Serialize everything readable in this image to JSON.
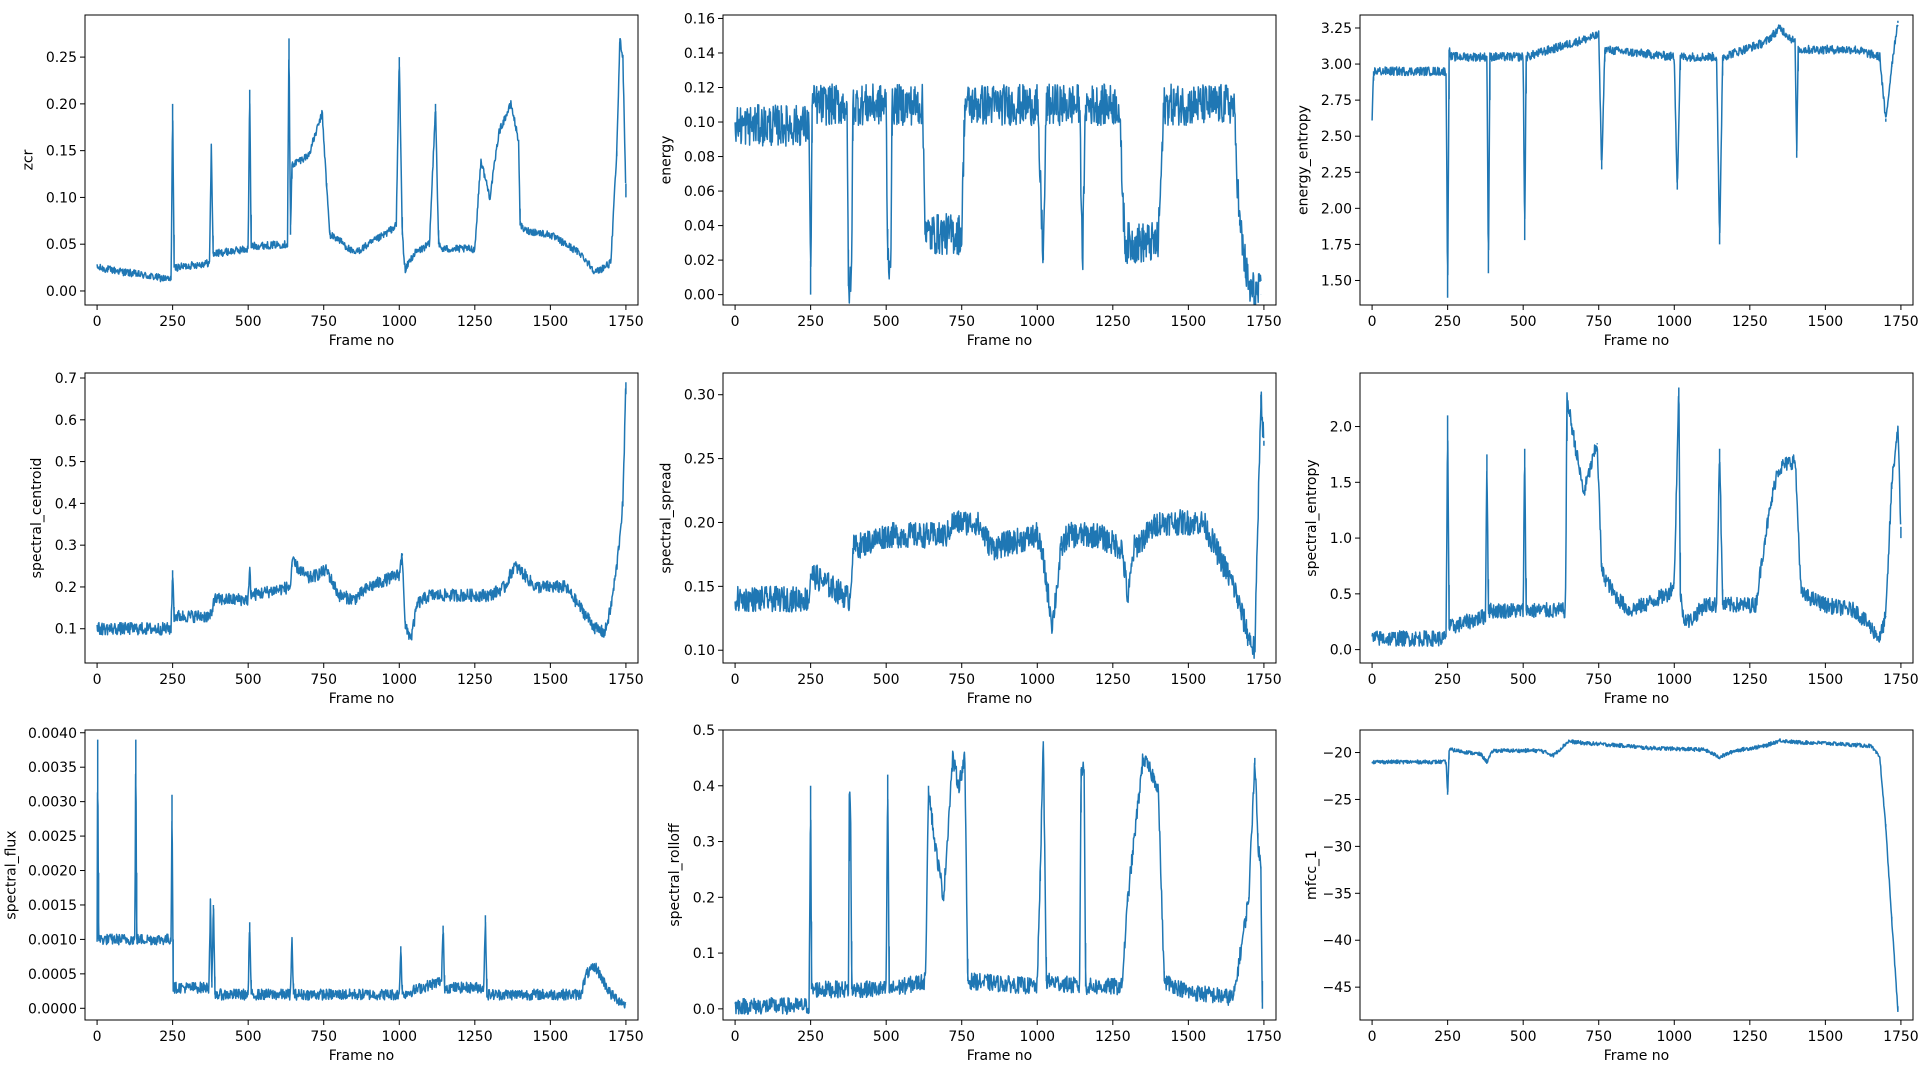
{
  "figure": {
    "background": "#ffffff",
    "line_color": "#1f77b4",
    "axes_color": "#000000"
  },
  "chart_data": [
    {
      "type": "line",
      "xlabel": "Frame no",
      "ylabel": "zcr",
      "xlim": [
        -40,
        1790
      ],
      "ylim": [
        -0.015,
        0.295
      ],
      "xticks": [
        0,
        250,
        500,
        750,
        1000,
        1250,
        1500,
        1750
      ],
      "xtick_labels": [
        "0",
        "250",
        "500",
        "750",
        "1000",
        "1250",
        "1500",
        "1750"
      ],
      "yticks": [
        0,
        0.05,
        0.1,
        0.15,
        0.2,
        0.25
      ],
      "ytick_labels": [
        "0.00",
        "0.05",
        "0.10",
        "0.15",
        "0.20",
        "0.25"
      ],
      "x": [
        0,
        245,
        250,
        255,
        260,
        372,
        378,
        384,
        390,
        500,
        505,
        510,
        515,
        630,
        635,
        640,
        645,
        700,
        745,
        760,
        770,
        800,
        850,
        900,
        950,
        990,
        1000,
        1010,
        1020,
        1030,
        1050,
        1100,
        1120,
        1130,
        1140,
        1150,
        1200,
        1250,
        1270,
        1300,
        1330,
        1370,
        1395,
        1400,
        1415,
        1500,
        1600,
        1650,
        1700,
        1720,
        1730,
        1740,
        1750
      ],
      "values": [
        0.025,
        0.012,
        0.2,
        0.025,
        0.025,
        0.03,
        0.155,
        0.04,
        0.04,
        0.045,
        0.215,
        0.048,
        0.048,
        0.05,
        0.27,
        0.06,
        0.135,
        0.145,
        0.19,
        0.11,
        0.06,
        0.055,
        0.04,
        0.05,
        0.06,
        0.07,
        0.25,
        0.06,
        0.02,
        0.03,
        0.04,
        0.05,
        0.2,
        0.05,
        0.045,
        0.045,
        0.045,
        0.045,
        0.14,
        0.1,
        0.17,
        0.2,
        0.16,
        0.07,
        0.065,
        0.06,
        0.04,
        0.02,
        0.03,
        0.15,
        0.27,
        0.25,
        0.1
      ],
      "noise": 0.004
    },
    {
      "type": "line",
      "xlabel": "Frame no",
      "ylabel": "energy",
      "xlim": [
        -40,
        1790
      ],
      "ylim": [
        -0.006,
        0.162
      ],
      "xticks": [
        0,
        250,
        500,
        750,
        1000,
        1250,
        1500,
        1750
      ],
      "xtick_labels": [
        "0",
        "250",
        "500",
        "750",
        "1000",
        "1250",
        "1500",
        "1750"
      ],
      "yticks": [
        0,
        0.02,
        0.04,
        0.06,
        0.08,
        0.1,
        0.12,
        0.14,
        0.16
      ],
      "ytick_labels": [
        "0.00",
        "0.02",
        "0.04",
        "0.06",
        "0.08",
        "0.10",
        "0.12",
        "0.14",
        "0.16"
      ],
      "x": [
        0,
        245,
        250,
        255,
        260,
        370,
        375,
        385,
        390,
        500,
        505,
        515,
        520,
        620,
        630,
        700,
        750,
        760,
        900,
        1000,
        1020,
        1030,
        1140,
        1150,
        1160,
        1270,
        1290,
        1300,
        1400,
        1420,
        1600,
        1650,
        1670,
        1700,
        1740
      ],
      "values": [
        0.098,
        0.098,
        0.0,
        0.11,
        0.11,
        0.11,
        0.005,
        0.005,
        0.11,
        0.11,
        0.02,
        0.02,
        0.11,
        0.11,
        0.035,
        0.035,
        0.035,
        0.11,
        0.11,
        0.11,
        0.02,
        0.11,
        0.11,
        0.02,
        0.11,
        0.11,
        0.03,
        0.03,
        0.03,
        0.11,
        0.11,
        0.11,
        0.04,
        0.003,
        0.0
      ],
      "noise": 0.012
    },
    {
      "type": "line",
      "xlabel": "Frame no",
      "ylabel": "energy_entropy",
      "xlim": [
        -40,
        1790
      ],
      "ylim": [
        1.33,
        3.34
      ],
      "xticks": [
        0,
        250,
        500,
        750,
        1000,
        1250,
        1500,
        1750
      ],
      "xtick_labels": [
        "0",
        "250",
        "500",
        "750",
        "1000",
        "1250",
        "1500",
        "1750"
      ],
      "yticks": [
        1.5,
        1.75,
        2.0,
        2.25,
        2.5,
        2.75,
        3.0,
        3.25
      ],
      "ytick_labels": [
        "1.50",
        "1.75",
        "2.00",
        "2.25",
        "2.50",
        "2.75",
        "3.00",
        "3.25"
      ],
      "x": [
        0,
        5,
        10,
        245,
        250,
        255,
        260,
        380,
        385,
        390,
        500,
        505,
        510,
        750,
        760,
        770,
        1000,
        1010,
        1020,
        1140,
        1150,
        1160,
        1300,
        1350,
        1400,
        1405,
        1410,
        1600,
        1680,
        1700,
        1720,
        1740
      ],
      "values": [
        2.62,
        2.95,
        2.95,
        2.95,
        1.38,
        3.1,
        3.05,
        3.05,
        1.55,
        3.05,
        3.05,
        1.78,
        3.05,
        3.2,
        2.27,
        3.1,
        3.05,
        2.13,
        3.05,
        3.05,
        1.75,
        3.05,
        3.15,
        3.25,
        3.15,
        2.35,
        3.1,
        3.1,
        3.05,
        2.6,
        3.0,
        3.3
      ],
      "noise": 0.03
    },
    {
      "type": "line",
      "xlabel": "Frame no",
      "ylabel": "spectral_centroid",
      "xlim": [
        -40,
        1790
      ],
      "ylim": [
        0.018,
        0.712
      ],
      "xticks": [
        0,
        250,
        500,
        750,
        1000,
        1250,
        1500,
        1750
      ],
      "xtick_labels": [
        "0",
        "250",
        "500",
        "750",
        "1000",
        "1250",
        "1500",
        "1750"
      ],
      "yticks": [
        0.1,
        0.2,
        0.3,
        0.4,
        0.5,
        0.6,
        0.7
      ],
      "ytick_labels": [
        "0.1",
        "0.2",
        "0.3",
        "0.4",
        "0.5",
        "0.6",
        "0.7"
      ],
      "x": [
        0,
        245,
        250,
        255,
        380,
        385,
        500,
        505,
        510,
        640,
        645,
        700,
        760,
        800,
        850,
        900,
        1000,
        1010,
        1020,
        1040,
        1060,
        1100,
        1200,
        1300,
        1350,
        1380,
        1400,
        1450,
        1550,
        1650,
        1680,
        1700,
        1720,
        1740,
        1750
      ],
      "values": [
        0.1,
        0.1,
        0.24,
        0.13,
        0.13,
        0.17,
        0.17,
        0.24,
        0.18,
        0.2,
        0.26,
        0.22,
        0.24,
        0.18,
        0.17,
        0.2,
        0.23,
        0.28,
        0.1,
        0.08,
        0.16,
        0.18,
        0.18,
        0.18,
        0.2,
        0.25,
        0.24,
        0.2,
        0.2,
        0.1,
        0.09,
        0.15,
        0.25,
        0.4,
        0.69
      ],
      "noise": 0.015
    },
    {
      "type": "line",
      "xlabel": "Frame no",
      "ylabel": "spectral_spread",
      "xlim": [
        -40,
        1790
      ],
      "ylim": [
        0.09,
        0.317
      ],
      "xticks": [
        0,
        250,
        500,
        750,
        1000,
        1250,
        1500,
        1750
      ],
      "xtick_labels": [
        "0",
        "250",
        "500",
        "750",
        "1000",
        "1250",
        "1500",
        "1750"
      ],
      "yticks": [
        0.1,
        0.15,
        0.2,
        0.25,
        0.3
      ],
      "ytick_labels": [
        "0.10",
        "0.15",
        "0.20",
        "0.25",
        "0.30"
      ],
      "x": [
        0,
        245,
        250,
        380,
        390,
        500,
        600,
        700,
        720,
        800,
        850,
        1000,
        1020,
        1050,
        1080,
        1100,
        1200,
        1280,
        1300,
        1320,
        1400,
        1450,
        1500,
        1550,
        1650,
        1700,
        1720,
        1740,
        1750
      ],
      "values": [
        0.14,
        0.14,
        0.16,
        0.14,
        0.18,
        0.19,
        0.19,
        0.19,
        0.2,
        0.2,
        0.18,
        0.19,
        0.17,
        0.12,
        0.18,
        0.19,
        0.19,
        0.18,
        0.14,
        0.18,
        0.2,
        0.2,
        0.2,
        0.2,
        0.15,
        0.11,
        0.1,
        0.3,
        0.26
      ],
      "noise": 0.01
    },
    {
      "type": "line",
      "xlabel": "Frame no",
      "ylabel": "spectral_entropy",
      "xlim": [
        -40,
        1790
      ],
      "ylim": [
        -0.12,
        2.48
      ],
      "xticks": [
        0,
        250,
        500,
        750,
        1000,
        1250,
        1500,
        1750
      ],
      "xtick_labels": [
        "0",
        "250",
        "500",
        "750",
        "1000",
        "1250",
        "1500",
        "1750"
      ],
      "yticks": [
        0,
        0.5,
        1.0,
        1.5,
        2.0
      ],
      "ytick_labels": [
        "0.0",
        "0.5",
        "1.0",
        "1.5",
        "2.0"
      ],
      "x": [
        0,
        245,
        250,
        255,
        260,
        375,
        380,
        385,
        390,
        500,
        505,
        510,
        640,
        645,
        700,
        745,
        760,
        800,
        850,
        900,
        980,
        1000,
        1015,
        1020,
        1030,
        1050,
        1100,
        1140,
        1150,
        1160,
        1270,
        1300,
        1340,
        1360,
        1400,
        1420,
        1500,
        1600,
        1650,
        1680,
        1700,
        1720,
        1740,
        1750
      ],
      "values": [
        0.1,
        0.1,
        2.1,
        0.2,
        0.2,
        0.3,
        1.75,
        0.35,
        0.35,
        0.35,
        1.8,
        0.35,
        0.35,
        2.25,
        1.4,
        1.85,
        0.7,
        0.5,
        0.35,
        0.4,
        0.5,
        0.6,
        2.35,
        0.5,
        0.3,
        0.25,
        0.4,
        0.4,
        1.8,
        0.4,
        0.4,
        1.0,
        1.6,
        1.65,
        1.7,
        0.5,
        0.4,
        0.35,
        0.2,
        0.1,
        0.3,
        1.5,
        2.0,
        1.0
      ],
      "noise": 0.07
    },
    {
      "type": "line",
      "xlabel": "Frame no",
      "ylabel": "spectral_flux",
      "xlim": [
        -40,
        1790
      ],
      "ylim": [
        -0.00017,
        0.00404
      ],
      "xticks": [
        0,
        250,
        500,
        750,
        1000,
        1250,
        1500,
        1750
      ],
      "xtick_labels": [
        "0",
        "250",
        "500",
        "750",
        "1000",
        "1250",
        "1500",
        "1750"
      ],
      "yticks": [
        0,
        0.0005,
        0.001,
        0.0015,
        0.002,
        0.0025,
        0.003,
        0.0035,
        0.004
      ],
      "ytick_labels": [
        "0.0000",
        "0.0005",
        "0.0010",
        "0.0015",
        "0.0020",
        "0.0025",
        "0.0030",
        "0.0035",
        "0.0040"
      ],
      "x": [
        0,
        2,
        5,
        125,
        128,
        131,
        245,
        248,
        252,
        260,
        370,
        375,
        380,
        385,
        390,
        500,
        505,
        510,
        640,
        645,
        650,
        800,
        900,
        1000,
        1005,
        1010,
        1140,
        1145,
        1150,
        1280,
        1285,
        1290,
        1400,
        1600,
        1620,
        1650,
        1700,
        1750
      ],
      "values": [
        0.001,
        0.0039,
        0.001,
        0.001,
        0.0039,
        0.001,
        0.001,
        0.0031,
        0.0003,
        0.0003,
        0.0003,
        0.00155,
        0.0003,
        0.0015,
        0.0002,
        0.0002,
        0.00125,
        0.0002,
        0.0002,
        0.001,
        0.0002,
        0.0002,
        0.0002,
        0.0002,
        0.0009,
        0.0002,
        0.0004,
        0.0012,
        0.0003,
        0.0003,
        0.00135,
        0.0002,
        0.0002,
        0.0002,
        0.0005,
        0.0006,
        0.0002,
        5e-05
      ],
      "noise": 8e-05
    },
    {
      "type": "line",
      "xlabel": "Frame no",
      "ylabel": "spectral_rolloff",
      "xlim": [
        -40,
        1790
      ],
      "ylim": [
        -0.02,
        0.5
      ],
      "xticks": [
        0,
        250,
        500,
        750,
        1000,
        1250,
        1500,
        1750
      ],
      "xtick_labels": [
        "0",
        "250",
        "500",
        "750",
        "1000",
        "1250",
        "1500",
        "1750"
      ],
      "yticks": [
        0,
        0.1,
        0.2,
        0.3,
        0.4,
        0.5
      ],
      "ytick_labels": [
        "0.0",
        "0.1",
        "0.2",
        "0.3",
        "0.4",
        "0.5"
      ],
      "x": [
        0,
        245,
        250,
        253,
        256,
        375,
        378,
        382,
        386,
        500,
        505,
        510,
        515,
        630,
        640,
        660,
        690,
        720,
        740,
        760,
        770,
        1000,
        1010,
        1020,
        1030,
        1140,
        1145,
        1155,
        1160,
        1280,
        1300,
        1330,
        1350,
        1400,
        1420,
        1500,
        1650,
        1700,
        1720,
        1730,
        1740,
        1745
      ],
      "values": [
        0.005,
        0.005,
        0.4,
        0.035,
        0.035,
        0.035,
        0.38,
        0.38,
        0.035,
        0.035,
        0.42,
        0.035,
        0.035,
        0.05,
        0.4,
        0.3,
        0.2,
        0.45,
        0.4,
        0.45,
        0.05,
        0.04,
        0.25,
        0.48,
        0.05,
        0.04,
        0.43,
        0.43,
        0.04,
        0.04,
        0.2,
        0.35,
        0.45,
        0.4,
        0.05,
        0.03,
        0.02,
        0.2,
        0.45,
        0.3,
        0.25,
        0.0
      ],
      "noise": 0.015
    },
    {
      "type": "line",
      "xlabel": "Frame no",
      "ylabel": "mfcc_1",
      "xlim": [
        -40,
        1790
      ],
      "ylim": [
        -48.5,
        -17.6
      ],
      "xticks": [
        0,
        250,
        500,
        750,
        1000,
        1250,
        1500,
        1750
      ],
      "xtick_labels": [
        "0",
        "250",
        "500",
        "750",
        "1000",
        "1250",
        "1500",
        "1750"
      ],
      "yticks": [
        -45,
        -40,
        -35,
        -30,
        -25,
        -20
      ],
      "ytick_labels": [
        "−45",
        "−40",
        "−35",
        "−30",
        "−25",
        "−20"
      ],
      "x": [
        0,
        245,
        250,
        255,
        260,
        360,
        380,
        400,
        500,
        560,
        600,
        650,
        700,
        800,
        850,
        900,
        1000,
        1100,
        1150,
        1200,
        1300,
        1350,
        1400,
        1500,
        1600,
        1650,
        1680,
        1700,
        1720,
        1740
      ],
      "values": [
        -21,
        -21,
        -24.5,
        -19.8,
        -19.7,
        -20.2,
        -21,
        -19.8,
        -19.8,
        -19.8,
        -20.3,
        -18.8,
        -19.0,
        -19.2,
        -19.3,
        -19.5,
        -19.6,
        -19.7,
        -20.5,
        -19.8,
        -19.3,
        -18.7,
        -18.9,
        -19.0,
        -19.2,
        -19.3,
        -20.5,
        -28,
        -38,
        -47.5
      ],
      "noise": 0.2
    }
  ]
}
